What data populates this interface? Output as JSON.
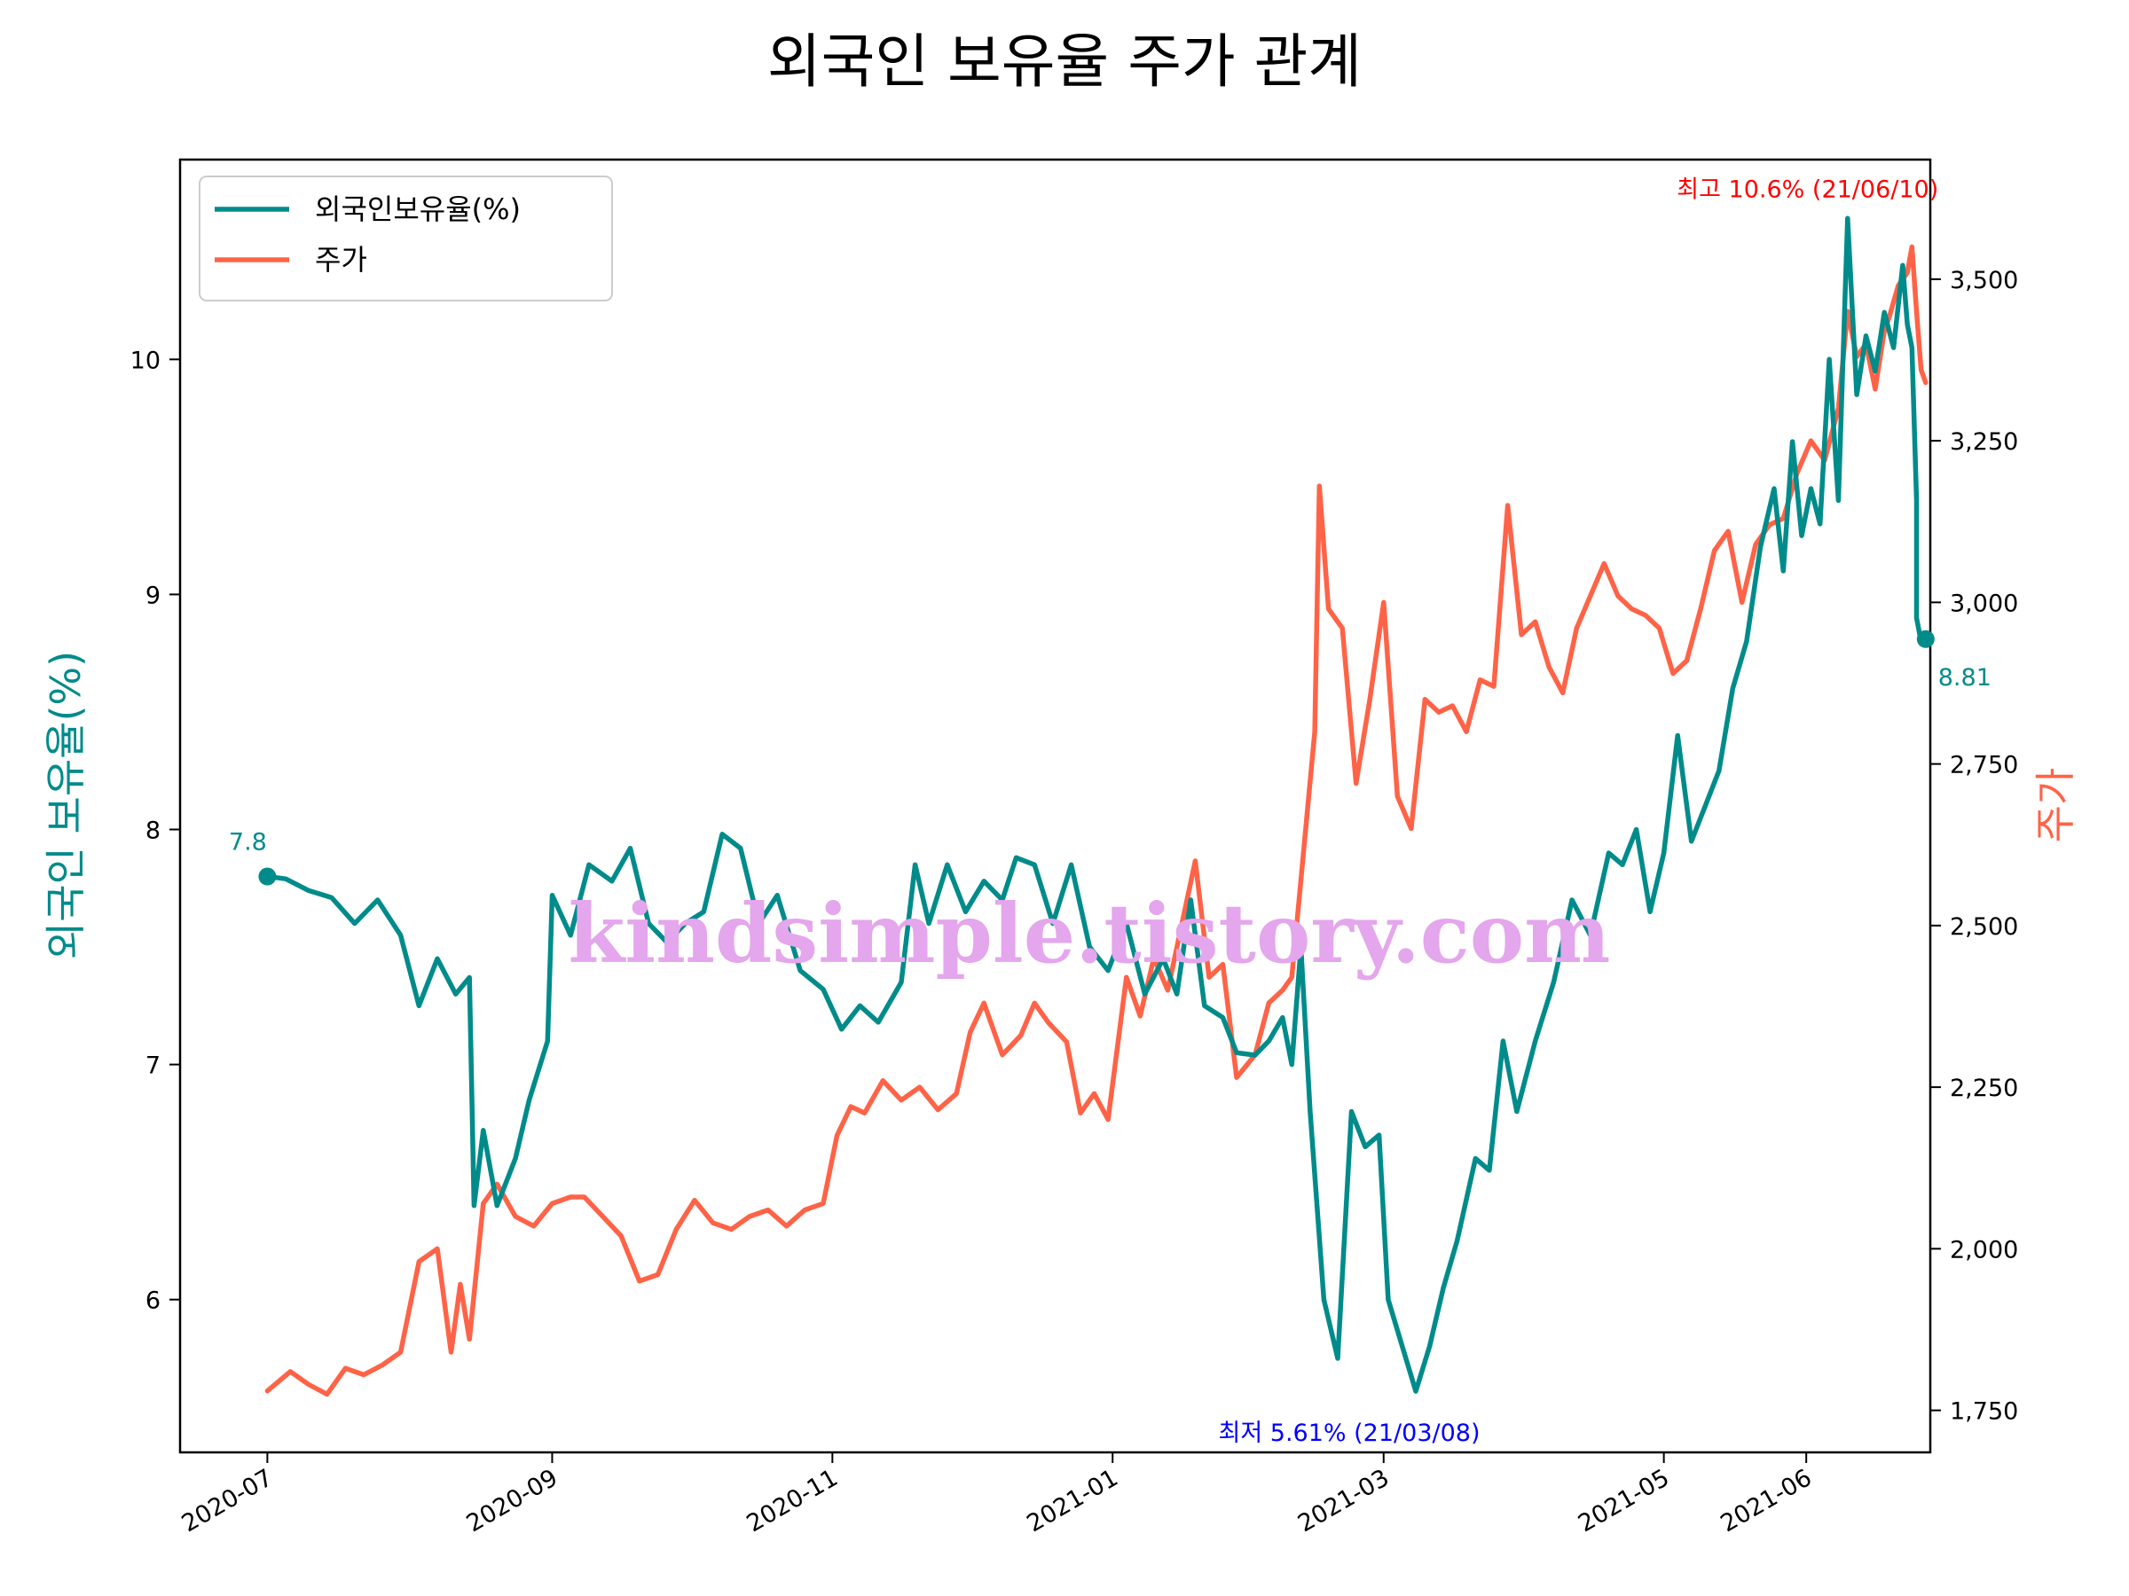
{
  "chart_data": {
    "type": "line",
    "title": "외국인 보유율 주가 관계",
    "xlabel": "",
    "ylabel_left": "외국인 보유율(%)",
    "ylabel_right": "주가",
    "x_tick_labels": [
      "2020-07",
      "2020-09",
      "2020-11",
      "2021-01",
      "2021-03",
      "2021-05",
      "2021-06"
    ],
    "x_tick_dates": [
      "2020-07-01",
      "2020-09-01",
      "2020-11-01",
      "2021-01-01",
      "2021-03-01",
      "2021-05-01",
      "2021-06-01"
    ],
    "x_range": [
      "2020-06-12",
      "2021-06-28"
    ],
    "y_left": {
      "range": [
        5.35,
        10.85
      ],
      "ticks": [
        6,
        7,
        8,
        9,
        10
      ],
      "tick_labels": [
        "6",
        "7",
        "8",
        "9",
        "10"
      ]
    },
    "y_right": {
      "range": [
        1685,
        3685
      ],
      "ticks": [
        1750,
        2000,
        2250,
        2500,
        2750,
        3000,
        3250,
        3500
      ],
      "tick_labels": [
        "1,750",
        "2,000",
        "2,250",
        "2,500",
        "2,750",
        "3,000",
        "3,250",
        "3,500"
      ]
    },
    "grid": false,
    "legend": {
      "position": "top-left"
    },
    "series": [
      {
        "name": "외국인보유율(%)",
        "axis": "left",
        "color": "#008b8b",
        "points": [
          [
            "2020-07-01",
            7.8
          ],
          [
            "2020-07-05",
            7.79
          ],
          [
            "2020-07-10",
            7.74
          ],
          [
            "2020-07-15",
            7.71
          ],
          [
            "2020-07-20",
            7.6
          ],
          [
            "2020-07-25",
            7.7
          ],
          [
            "2020-07-30",
            7.55
          ],
          [
            "2020-08-03",
            7.25
          ],
          [
            "2020-08-07",
            7.45
          ],
          [
            "2020-08-11",
            7.3
          ],
          [
            "2020-08-14",
            7.37
          ],
          [
            "2020-08-15",
            6.4
          ],
          [
            "2020-08-17",
            6.72
          ],
          [
            "2020-08-20",
            6.4
          ],
          [
            "2020-08-24",
            6.6
          ],
          [
            "2020-08-27",
            6.85
          ],
          [
            "2020-08-31",
            7.1
          ],
          [
            "2020-09-01",
            7.72
          ],
          [
            "2020-09-05",
            7.55
          ],
          [
            "2020-09-09",
            7.85
          ],
          [
            "2020-09-14",
            7.78
          ],
          [
            "2020-09-18",
            7.92
          ],
          [
            "2020-09-22",
            7.6
          ],
          [
            "2020-09-26",
            7.52
          ],
          [
            "2020-09-30",
            7.6
          ],
          [
            "2020-10-04",
            7.65
          ],
          [
            "2020-10-08",
            7.98
          ],
          [
            "2020-10-12",
            7.92
          ],
          [
            "2020-10-16",
            7.6
          ],
          [
            "2020-10-20",
            7.72
          ],
          [
            "2020-10-25",
            7.4
          ],
          [
            "2020-10-30",
            7.32
          ],
          [
            "2020-11-03",
            7.15
          ],
          [
            "2020-11-07",
            7.25
          ],
          [
            "2020-11-11",
            7.18
          ],
          [
            "2020-11-16",
            7.35
          ],
          [
            "2020-11-19",
            7.85
          ],
          [
            "2020-11-22",
            7.6
          ],
          [
            "2020-11-26",
            7.85
          ],
          [
            "2020-11-30",
            7.65
          ],
          [
            "2020-12-04",
            7.78
          ],
          [
            "2020-12-08",
            7.7
          ],
          [
            "2020-12-11",
            7.88
          ],
          [
            "2020-12-15",
            7.85
          ],
          [
            "2020-12-19",
            7.6
          ],
          [
            "2020-12-23",
            7.85
          ],
          [
            "2020-12-27",
            7.5
          ],
          [
            "2020-12-31",
            7.4
          ],
          [
            "2021-01-04",
            7.6
          ],
          [
            "2021-01-08",
            7.3
          ],
          [
            "2021-01-12",
            7.45
          ],
          [
            "2021-01-15",
            7.3
          ],
          [
            "2021-01-18",
            7.7
          ],
          [
            "2021-01-21",
            7.25
          ],
          [
            "2021-01-25",
            7.2
          ],
          [
            "2021-01-28",
            7.05
          ],
          [
            "2021-02-01",
            7.04
          ],
          [
            "2021-02-04",
            7.1
          ],
          [
            "2021-02-07",
            7.2
          ],
          [
            "2021-02-09",
            7.0
          ],
          [
            "2021-02-11",
            7.5
          ],
          [
            "2021-02-13",
            6.8
          ],
          [
            "2021-02-16",
            6.0
          ],
          [
            "2021-02-19",
            5.75
          ],
          [
            "2021-02-22",
            6.8
          ],
          [
            "2021-02-25",
            6.65
          ],
          [
            "2021-02-28",
            6.7
          ],
          [
            "2021-03-02",
            6.0
          ],
          [
            "2021-03-08",
            5.61
          ],
          [
            "2021-03-11",
            5.8
          ],
          [
            "2021-03-14",
            6.05
          ],
          [
            "2021-03-17",
            6.25
          ],
          [
            "2021-03-21",
            6.6
          ],
          [
            "2021-03-24",
            6.55
          ],
          [
            "2021-03-27",
            7.1
          ],
          [
            "2021-03-30",
            6.8
          ],
          [
            "2021-04-03",
            7.1
          ],
          [
            "2021-04-07",
            7.35
          ],
          [
            "2021-04-11",
            7.7
          ],
          [
            "2021-04-15",
            7.55
          ],
          [
            "2021-04-19",
            7.9
          ],
          [
            "2021-04-22",
            7.85
          ],
          [
            "2021-04-25",
            8.0
          ],
          [
            "2021-04-28",
            7.65
          ],
          [
            "2021-05-01",
            7.9
          ],
          [
            "2021-05-04",
            8.4
          ],
          [
            "2021-05-07",
            7.95
          ],
          [
            "2021-05-10",
            8.1
          ],
          [
            "2021-05-13",
            8.25
          ],
          [
            "2021-05-16",
            8.6
          ],
          [
            "2021-05-19",
            8.8
          ],
          [
            "2021-05-22",
            9.2
          ],
          [
            "2021-05-25",
            9.45
          ],
          [
            "2021-05-27",
            9.1
          ],
          [
            "2021-05-29",
            9.65
          ],
          [
            "2021-05-31",
            9.25
          ],
          [
            "2021-06-02",
            9.45
          ],
          [
            "2021-06-04",
            9.3
          ],
          [
            "2021-06-06",
            10.0
          ],
          [
            "2021-06-08",
            9.4
          ],
          [
            "2021-06-10",
            10.6
          ],
          [
            "2021-06-12",
            9.85
          ],
          [
            "2021-06-14",
            10.1
          ],
          [
            "2021-06-16",
            9.95
          ],
          [
            "2021-06-18",
            10.2
          ],
          [
            "2021-06-20",
            10.05
          ],
          [
            "2021-06-22",
            10.4
          ],
          [
            "2021-06-23",
            10.15
          ],
          [
            "2021-06-24",
            10.05
          ],
          [
            "2021-06-25",
            9.4
          ],
          [
            "2021-06-25",
            8.9
          ],
          [
            "2021-06-26",
            8.8
          ],
          [
            "2021-06-27",
            8.81
          ]
        ]
      },
      {
        "name": "주가",
        "axis": "right",
        "color": "#ff6347",
        "points": [
          [
            "2020-07-01",
            1780
          ],
          [
            "2020-07-06",
            1810
          ],
          [
            "2020-07-10",
            1790
          ],
          [
            "2020-07-14",
            1775
          ],
          [
            "2020-07-18",
            1815
          ],
          [
            "2020-07-22",
            1805
          ],
          [
            "2020-07-26",
            1820
          ],
          [
            "2020-07-30",
            1840
          ],
          [
            "2020-08-03",
            1980
          ],
          [
            "2020-08-07",
            2000
          ],
          [
            "2020-08-10",
            1840
          ],
          [
            "2020-08-12",
            1945
          ],
          [
            "2020-08-14",
            1860
          ],
          [
            "2020-08-17",
            2070
          ],
          [
            "2020-08-20",
            2100
          ],
          [
            "2020-08-24",
            2050
          ],
          [
            "2020-08-28",
            2035
          ],
          [
            "2020-09-01",
            2070
          ],
          [
            "2020-09-05",
            2080
          ],
          [
            "2020-09-08",
            2080
          ],
          [
            "2020-09-12",
            2050
          ],
          [
            "2020-09-16",
            2020
          ],
          [
            "2020-09-20",
            1950
          ],
          [
            "2020-09-24",
            1960
          ],
          [
            "2020-09-28",
            2030
          ],
          [
            "2020-10-02",
            2075
          ],
          [
            "2020-10-06",
            2040
          ],
          [
            "2020-10-10",
            2030
          ],
          [
            "2020-10-14",
            2050
          ],
          [
            "2020-10-18",
            2060
          ],
          [
            "2020-10-22",
            2035
          ],
          [
            "2020-10-26",
            2060
          ],
          [
            "2020-10-30",
            2070
          ],
          [
            "2020-11-02",
            2175
          ],
          [
            "2020-11-05",
            2220
          ],
          [
            "2020-11-08",
            2210
          ],
          [
            "2020-11-12",
            2260
          ],
          [
            "2020-11-16",
            2230
          ],
          [
            "2020-11-20",
            2250
          ],
          [
            "2020-11-24",
            2215
          ],
          [
            "2020-11-28",
            2240
          ],
          [
            "2020-12-01",
            2335
          ],
          [
            "2020-12-04",
            2380
          ],
          [
            "2020-12-08",
            2300
          ],
          [
            "2020-12-12",
            2330
          ],
          [
            "2020-12-15",
            2380
          ],
          [
            "2020-12-18",
            2350
          ],
          [
            "2020-12-22",
            2320
          ],
          [
            "2020-12-25",
            2210
          ],
          [
            "2020-12-28",
            2240
          ],
          [
            "2020-12-31",
            2200
          ],
          [
            "2021-01-04",
            2420
          ],
          [
            "2021-01-07",
            2360
          ],
          [
            "2021-01-10",
            2450
          ],
          [
            "2021-01-13",
            2400
          ],
          [
            "2021-01-16",
            2500
          ],
          [
            "2021-01-19",
            2600
          ],
          [
            "2021-01-22",
            2420
          ],
          [
            "2021-01-25",
            2440
          ],
          [
            "2021-01-28",
            2265
          ],
          [
            "2021-02-01",
            2300
          ],
          [
            "2021-02-04",
            2380
          ],
          [
            "2021-02-07",
            2400
          ],
          [
            "2021-02-09",
            2420
          ],
          [
            "2021-02-11",
            2570
          ],
          [
            "2021-02-14",
            2800
          ],
          [
            "2021-02-15",
            3180
          ],
          [
            "2021-02-17",
            2990
          ],
          [
            "2021-02-20",
            2960
          ],
          [
            "2021-02-23",
            2720
          ],
          [
            "2021-02-26",
            2850
          ],
          [
            "2021-03-01",
            3000
          ],
          [
            "2021-03-04",
            2700
          ],
          [
            "2021-03-07",
            2650
          ],
          [
            "2021-03-10",
            2850
          ],
          [
            "2021-03-13",
            2830
          ],
          [
            "2021-03-16",
            2840
          ],
          [
            "2021-03-19",
            2800
          ],
          [
            "2021-03-22",
            2880
          ],
          [
            "2021-03-25",
            2870
          ],
          [
            "2021-03-28",
            3150
          ],
          [
            "2021-03-31",
            2950
          ],
          [
            "2021-04-03",
            2970
          ],
          [
            "2021-04-06",
            2900
          ],
          [
            "2021-04-09",
            2860
          ],
          [
            "2021-04-12",
            2960
          ],
          [
            "2021-04-15",
            3010
          ],
          [
            "2021-04-18",
            3060
          ],
          [
            "2021-04-21",
            3010
          ],
          [
            "2021-04-24",
            2990
          ],
          [
            "2021-04-27",
            2980
          ],
          [
            "2021-04-30",
            2960
          ],
          [
            "2021-05-03",
            2890
          ],
          [
            "2021-05-06",
            2910
          ],
          [
            "2021-05-09",
            2990
          ],
          [
            "2021-05-12",
            3080
          ],
          [
            "2021-05-15",
            3110
          ],
          [
            "2021-05-18",
            3000
          ],
          [
            "2021-05-21",
            3090
          ],
          [
            "2021-05-24",
            3120
          ],
          [
            "2021-05-27",
            3130
          ],
          [
            "2021-05-30",
            3200
          ],
          [
            "2021-06-02",
            3250
          ],
          [
            "2021-06-05",
            3220
          ],
          [
            "2021-06-08",
            3300
          ],
          [
            "2021-06-10",
            3450
          ],
          [
            "2021-06-12",
            3380
          ],
          [
            "2021-06-14",
            3400
          ],
          [
            "2021-06-16",
            3330
          ],
          [
            "2021-06-18",
            3420
          ],
          [
            "2021-06-19",
            3440
          ],
          [
            "2021-06-21",
            3490
          ],
          [
            "2021-06-23",
            3510
          ],
          [
            "2021-06-24",
            3550
          ],
          [
            "2021-06-25",
            3450
          ],
          [
            "2021-06-26",
            3360
          ],
          [
            "2021-06-27",
            3340
          ]
        ]
      }
    ],
    "annotations": [
      {
        "kind": "max",
        "text": "최고",
        "value_text": "10.6% (21/06/10)",
        "date": "2021-06-10",
        "value": 10.6,
        "color": "#ff0000"
      },
      {
        "kind": "min",
        "text": "최저",
        "value_text": "5.61% (21/03/08)",
        "date": "2021-03-08",
        "value": 5.61,
        "color": "#0000ff"
      },
      {
        "kind": "start",
        "text": "7.8",
        "date": "2020-07-01",
        "value": 7.8,
        "color": "#008b8b"
      },
      {
        "kind": "end",
        "text": "8.81",
        "date": "2021-06-27",
        "value": 8.81,
        "color": "#008b8b"
      }
    ],
    "watermark": "kindsimple.tistory.com"
  }
}
